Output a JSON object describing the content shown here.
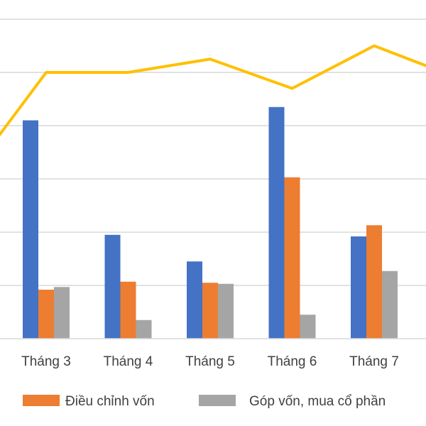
{
  "chart_data": {
    "type": "bar",
    "categories": [
      "Tháng 3",
      "Tháng 4",
      "Tháng 5",
      "Tháng 6",
      "Tháng 7"
    ],
    "ylim": [
      0,
      8
    ],
    "grid": true,
    "series": [
      {
        "kind": "bar",
        "color": "#4472C4",
        "values": [
          4.1,
          1.95,
          1.45,
          4.35,
          1.92
        ]
      },
      {
        "kind": "bar",
        "name": "Điều chỉnh vốn",
        "color": "#ED7D31",
        "values": [
          0.92,
          1.07,
          1.05,
          3.03,
          2.13
        ]
      },
      {
        "kind": "bar",
        "name": "Góp vốn, mua cổ phần",
        "color": "#A5A5A5",
        "values": [
          0.97,
          0.35,
          1.03,
          0.45,
          1.27
        ]
      },
      {
        "kind": "line",
        "color": "#FFC000",
        "values": [
          5.0,
          5.0,
          5.25,
          4.7,
          5.5
        ]
      }
    ],
    "legend_position": "bottom"
  }
}
